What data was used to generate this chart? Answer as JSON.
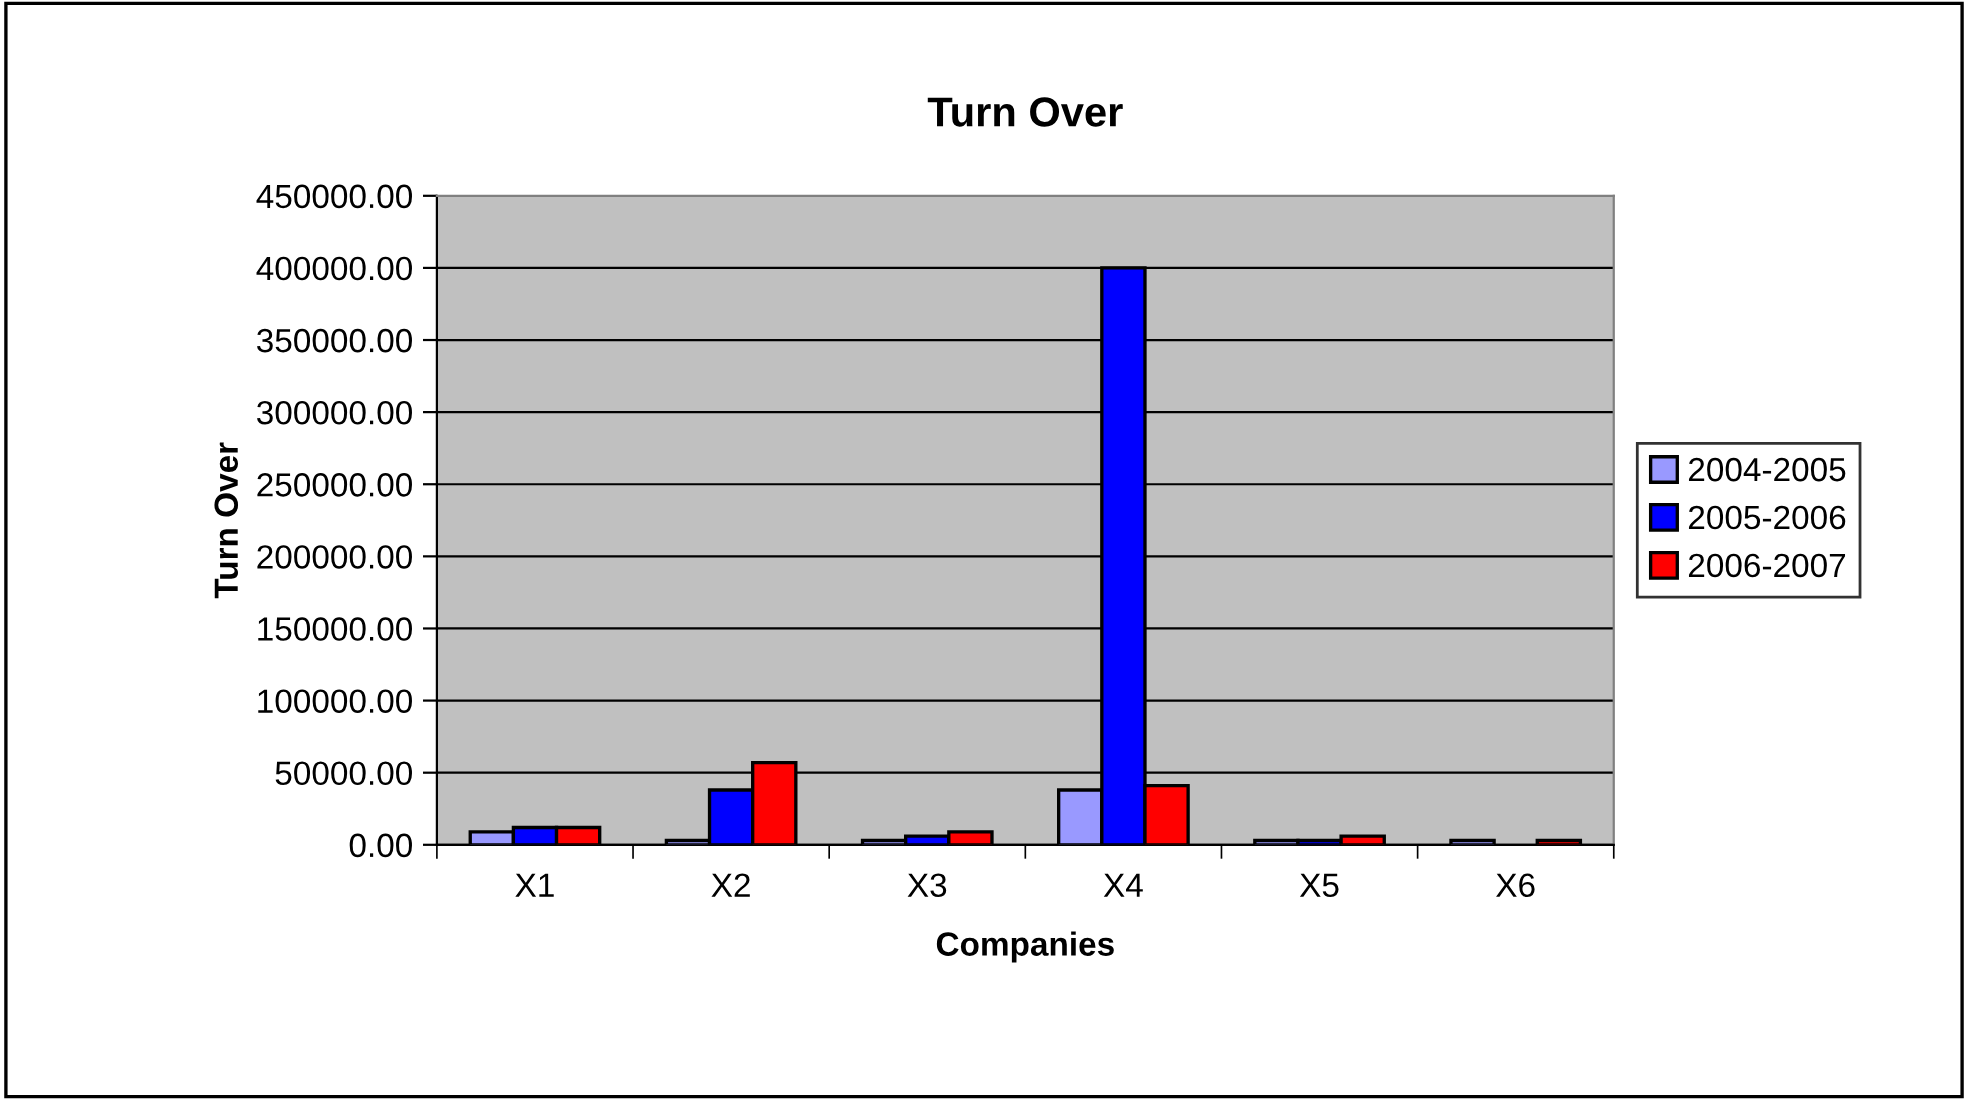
{
  "chart_data": {
    "type": "bar",
    "title": "Turn Over",
    "xlabel": "Companies",
    "ylabel": "Turn Over",
    "categories": [
      "X1",
      "X2",
      "X3",
      "X4",
      "X5",
      "X6"
    ],
    "series": [
      {
        "name": "2004-2005",
        "color": "#9999ff",
        "values": [
          9000,
          3000,
          3000,
          38000,
          3000,
          3000
        ]
      },
      {
        "name": "2005-2006",
        "color": "#0000ff",
        "values": [
          12000,
          38000,
          6000,
          400000,
          3000,
          null
        ]
      },
      {
        "name": "2006-2007",
        "color": "#ff0000",
        "values": [
          12000,
          57000,
          9000,
          41000,
          6000,
          3000
        ]
      }
    ],
    "ylim": [
      0,
      450000
    ],
    "yticks": [
      {
        "value": 0,
        "label": "0.00"
      },
      {
        "value": 50000,
        "label": "50000.00"
      },
      {
        "value": 100000,
        "label": "100000.00"
      },
      {
        "value": 150000,
        "label": "150000.00"
      },
      {
        "value": 200000,
        "label": "200000.00"
      },
      {
        "value": 250000,
        "label": "250000.00"
      },
      {
        "value": 300000,
        "label": "300000.00"
      },
      {
        "value": 350000,
        "label": "350000.00"
      },
      {
        "value": 400000,
        "label": "400000.00"
      },
      {
        "value": 450000,
        "label": "450000.00"
      }
    ],
    "grid": "y",
    "legend": "right"
  }
}
